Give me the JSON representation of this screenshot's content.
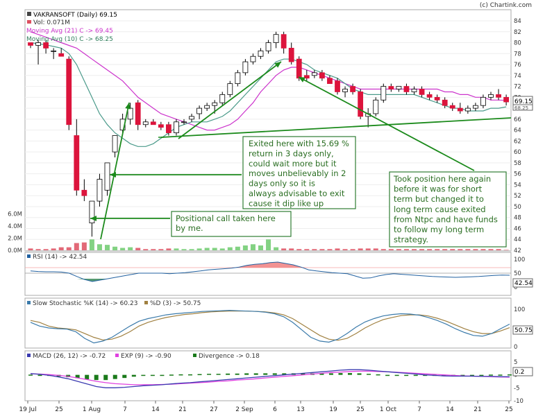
{
  "copyright": "(c) Chartink.com",
  "colors": {
    "up": "#ffffff",
    "down": "#dc143c",
    "wick": "#000000",
    "ma21": "#cc33cc",
    "ma10": "#4a9a8a",
    "volume": "#dd4f5f",
    "volume_up": "#6dca6d",
    "annotation_border": "#2e7d32",
    "annotation_text": "#2a6e22",
    "annotation_bg": "#ffffff",
    "arrow": "#1b8a1b",
    "rsi_line": "#2060a0",
    "rsi_fill": "#f08080",
    "stoch_k": "#3a7aaa",
    "stoch_d": "#a08040",
    "macd": "#3a3ab0",
    "exp": "#e040e0",
    "divergence": "#1a7a1a"
  },
  "header": {
    "title": "VAKRANSOFT (Daily) 69.15",
    "volume": "Vol: 0.071M",
    "ma21": "Moving Avg (21) C -> 69.45",
    "ma10": "Moving Avg (10) C -> 68.25"
  },
  "annotations": {
    "exit": "Exited here with 15.69 % return in 3 days only, could wait more but it moves unbelievably in 2 days only so it is always advisable to exit cause it dip like up move.",
    "position": "Took position here again before it was for short term but changed it to long term cause exited from Ntpc and have funds to follow my long term strategy.",
    "positional": "Positional call taken here by me."
  },
  "price_labels": {
    "last": "69.15",
    "ma": "68.25"
  },
  "panels": {
    "rsi": {
      "label": "RSI (14) -> 42.54",
      "value_box": "42.54"
    },
    "stoch": {
      "label_k": "Slow Stochastic %K (14) -> 60.23",
      "label_d": "%D (3) -> 50.75",
      "value_box": "50.75"
    },
    "macd": {
      "label_macd": "MACD (26, 12) -> -0.72",
      "label_exp": "EXP (9) -> -0.90",
      "label_div": "Divergence -> 0.18",
      "value_box": "0.2"
    }
  },
  "chart_data": {
    "type": "candlestick",
    "symbol": "VAKRANSOFT",
    "period": "Daily",
    "price_axis": {
      "ylim": [
        42,
        84
      ],
      "ticks": [
        42,
        44,
        46,
        48,
        50,
        52,
        54,
        56,
        58,
        60,
        62,
        64,
        66,
        68,
        70,
        72,
        74,
        76,
        78,
        80,
        82,
        84
      ]
    },
    "volume_axis": {
      "ylim": [
        0,
        7
      ],
      "ticks": [
        "0.0M",
        "2.0M",
        "4.0M",
        "6.0M"
      ]
    },
    "x_ticks": [
      "19 Jul",
      "25",
      "1 Aug",
      "7",
      "14",
      "21",
      "27",
      "2 Sep",
      "6",
      "13",
      "19",
      "25",
      "1 Oct",
      "7",
      "14",
      "21",
      "25"
    ],
    "candles": [
      {
        "o": 80,
        "h": 80,
        "l": 79,
        "c": 79.5
      },
      {
        "o": 79.5,
        "h": 80.5,
        "l": 76,
        "c": 80
      },
      {
        "o": 80,
        "h": 80.5,
        "l": 78,
        "c": 79
      },
      {
        "o": 78.5,
        "h": 79,
        "l": 77,
        "c": 78.5
      },
      {
        "o": 78,
        "h": 79,
        "l": 77.5,
        "c": 77.5
      },
      {
        "o": 77,
        "h": 77.5,
        "l": 64,
        "c": 65
      },
      {
        "o": 63,
        "h": 66,
        "l": 52,
        "c": 53
      },
      {
        "o": 53,
        "h": 55,
        "l": 51,
        "c": 52
      },
      {
        "o": 47,
        "h": 51,
        "l": 44.5,
        "c": 51
      },
      {
        "o": 51,
        "h": 56,
        "l": 50,
        "c": 55
      },
      {
        "o": 53,
        "h": 58,
        "l": 52,
        "c": 58
      },
      {
        "o": 60,
        "h": 63,
        "l": 59,
        "c": 63
      },
      {
        "o": 64,
        "h": 67,
        "l": 63,
        "c": 66
      },
      {
        "o": 66,
        "h": 69,
        "l": 65,
        "c": 68
      },
      {
        "o": 69,
        "h": 69.5,
        "l": 64,
        "c": 65
      },
      {
        "o": 65,
        "h": 66,
        "l": 64.5,
        "c": 65.5
      },
      {
        "o": 65.5,
        "h": 66,
        "l": 65,
        "c": 65
      },
      {
        "o": 65,
        "h": 65.5,
        "l": 64,
        "c": 64.5
      },
      {
        "o": 65,
        "h": 65.5,
        "l": 63,
        "c": 63.5
      },
      {
        "o": 63.5,
        "h": 66,
        "l": 63,
        "c": 65.5
      },
      {
        "o": 65.5,
        "h": 66,
        "l": 65,
        "c": 65.5
      },
      {
        "o": 66,
        "h": 67,
        "l": 65.5,
        "c": 66.5
      },
      {
        "o": 67,
        "h": 68.5,
        "l": 66,
        "c": 68
      },
      {
        "o": 68,
        "h": 69,
        "l": 67.5,
        "c": 68.5
      },
      {
        "o": 68.5,
        "h": 69.5,
        "l": 67,
        "c": 69
      },
      {
        "o": 69,
        "h": 71,
        "l": 68.5,
        "c": 70.5
      },
      {
        "o": 70.5,
        "h": 73,
        "l": 70,
        "c": 72.5
      },
      {
        "o": 72.5,
        "h": 75,
        "l": 72,
        "c": 74.5
      },
      {
        "o": 74.5,
        "h": 77,
        "l": 74,
        "c": 76.5
      },
      {
        "o": 76.5,
        "h": 78,
        "l": 76,
        "c": 77.5
      },
      {
        "o": 77.5,
        "h": 79,
        "l": 77,
        "c": 78.5
      },
      {
        "o": 78.5,
        "h": 80.5,
        "l": 78,
        "c": 80
      },
      {
        "o": 80,
        "h": 82,
        "l": 79,
        "c": 81.5
      },
      {
        "o": 81.5,
        "h": 82,
        "l": 78,
        "c": 79
      },
      {
        "o": 79,
        "h": 80,
        "l": 76,
        "c": 76.5
      },
      {
        "o": 77,
        "h": 77.5,
        "l": 73,
        "c": 73.5
      },
      {
        "o": 74,
        "h": 75,
        "l": 73,
        "c": 73.5
      },
      {
        "o": 74,
        "h": 75,
        "l": 73.5,
        "c": 74.5
      },
      {
        "o": 74.5,
        "h": 75,
        "l": 73,
        "c": 73.5
      },
      {
        "o": 73.5,
        "h": 74,
        "l": 72.5,
        "c": 72.5
      },
      {
        "o": 73,
        "h": 73.5,
        "l": 70.5,
        "c": 71
      },
      {
        "o": 71,
        "h": 72,
        "l": 70,
        "c": 71.5
      },
      {
        "o": 72,
        "h": 72.5,
        "l": 70.5,
        "c": 71
      },
      {
        "o": 71,
        "h": 71.5,
        "l": 66,
        "c": 66.5
      },
      {
        "o": 66.5,
        "h": 68,
        "l": 64.5,
        "c": 67
      },
      {
        "o": 67,
        "h": 70,
        "l": 66.5,
        "c": 69.5
      },
      {
        "o": 69.5,
        "h": 72.5,
        "l": 69,
        "c": 72
      },
      {
        "o": 72,
        "h": 72.5,
        "l": 71,
        "c": 71.5
      },
      {
        "o": 71.5,
        "h": 72,
        "l": 71,
        "c": 72
      },
      {
        "o": 72,
        "h": 72.5,
        "l": 70.5,
        "c": 71
      },
      {
        "o": 71,
        "h": 72,
        "l": 70.5,
        "c": 71.5
      },
      {
        "o": 71.5,
        "h": 72,
        "l": 70,
        "c": 70.5
      },
      {
        "o": 70.5,
        "h": 71,
        "l": 69.5,
        "c": 70
      },
      {
        "o": 70,
        "h": 70.5,
        "l": 69,
        "c": 69.5
      },
      {
        "o": 69.5,
        "h": 70,
        "l": 68,
        "c": 68.5
      },
      {
        "o": 68.5,
        "h": 69,
        "l": 67.5,
        "c": 68
      },
      {
        "o": 68,
        "h": 69,
        "l": 67,
        "c": 67.5
      },
      {
        "o": 67.5,
        "h": 68.5,
        "l": 67,
        "c": 68
      },
      {
        "o": 68,
        "h": 69,
        "l": 67.5,
        "c": 68.5
      },
      {
        "o": 68.5,
        "h": 70.5,
        "l": 68,
        "c": 70
      },
      {
        "o": 70,
        "h": 71,
        "l": 69.5,
        "c": 70.5
      },
      {
        "o": 70.5,
        "h": 71.5,
        "l": 69.5,
        "c": 70
      },
      {
        "o": 70,
        "h": 70.5,
        "l": 68.5,
        "c": 69.15
      }
    ],
    "volume": [
      0.3,
      0.2,
      0.2,
      0.3,
      0.5,
      0.5,
      1.2,
      1.3,
      1.8,
      1.0,
      0.9,
      0.6,
      0.4,
      0.5,
      0.4,
      0.2,
      0.2,
      0.2,
      0.3,
      0.3,
      0.2,
      0.2,
      0.3,
      0.4,
      0.4,
      0.3,
      0.5,
      0.6,
      0.8,
      1.0,
      0.8,
      1.8,
      0.5,
      0.3,
      0.3,
      0.2,
      0.2,
      0.2,
      0.2,
      0.2,
      0.3,
      0.2,
      0.2,
      0.3,
      0.3,
      0.3,
      0.2,
      0.2,
      0.2,
      0.2,
      0.2,
      0.2,
      0.2,
      0.2,
      0.2,
      0.2,
      0.2,
      0.2,
      0.2,
      0.2,
      0.2,
      0.2,
      0.071
    ],
    "volume_up": [
      false,
      false,
      false,
      false,
      false,
      false,
      false,
      false,
      true,
      true,
      true,
      true,
      true,
      true,
      false,
      false,
      false,
      false,
      false,
      true,
      true,
      true,
      true,
      true,
      true,
      true,
      true,
      true,
      true,
      true,
      true,
      true,
      true,
      false,
      false,
      false,
      false,
      false,
      false,
      false,
      false,
      false,
      false,
      false,
      false,
      false,
      false,
      false,
      false,
      false,
      false,
      false,
      false,
      false,
      false,
      false,
      false,
      false,
      false,
      false,
      false,
      false,
      false
    ],
    "ma21": [
      82,
      81.5,
      81,
      80.5,
      80,
      79.5,
      79,
      78,
      77,
      76,
      75,
      74,
      73,
      71.5,
      70,
      69,
      68,
      67,
      66.5,
      66,
      65.5,
      65,
      64.5,
      64,
      64,
      64.5,
      65,
      66,
      67.5,
      69,
      71,
      72.5,
      74,
      75,
      75.5,
      75.5,
      75,
      74.5,
      74,
      73.5,
      73,
      72.5,
      72,
      71.5,
      71.5,
      71.5,
      71.5,
      71.5,
      71.5,
      71.5,
      71.5,
      71.5,
      71.5,
      71.5,
      71,
      71,
      70.5,
      70.5,
      70,
      70,
      69.5,
      69.5,
      69.45
    ],
    "ma10": [
      80,
      79.8,
      79.6,
      79.3,
      79,
      78,
      76,
      73,
      70,
      67,
      65,
      63.5,
      62.5,
      61.5,
      61,
      61,
      61.5,
      62.5,
      63.5,
      64.5,
      65,
      65.5,
      65.5,
      65.5,
      66,
      66.5,
      67.5,
      69,
      70.5,
      72,
      73.5,
      75,
      76.5,
      77,
      77,
      76.5,
      76,
      75,
      74.5,
      74,
      73.5,
      72.5,
      71.5,
      71,
      70.5,
      70.5,
      70.5,
      70.5,
      70.5,
      70.5,
      70.5,
      70,
      69.5,
      69,
      68.5,
      68,
      68,
      67.5,
      67.5,
      67.5,
      68,
      68,
      68.25
    ],
    "rsi": {
      "ylim": [
        0,
        100
      ],
      "ticks": [
        0,
        50,
        100
      ],
      "overbought": 70,
      "last": 42.54,
      "values": [
        58,
        56,
        55,
        55,
        54,
        50,
        38,
        27,
        20,
        25,
        30,
        35,
        40,
        45,
        50,
        50,
        50,
        50,
        48,
        50,
        52,
        55,
        58,
        62,
        64,
        66,
        68,
        72,
        78,
        82,
        84,
        88,
        90,
        85,
        80,
        72,
        62,
        58,
        55,
        52,
        50,
        48,
        40,
        32,
        33,
        40,
        45,
        48,
        46,
        44,
        42,
        40,
        38,
        37,
        36,
        35,
        36,
        37,
        38,
        40,
        42,
        43,
        42.54
      ]
    },
    "stochastic": {
      "ylim": [
        0,
        100
      ],
      "ticks": [
        0,
        50,
        100
      ],
      "k_last": 60.23,
      "d_last": 50.75,
      "k": [
        65,
        55,
        50,
        48,
        47,
        40,
        22,
        10,
        15,
        25,
        40,
        55,
        68,
        75,
        80,
        85,
        88,
        90,
        92,
        94,
        95,
        96,
        97,
        96,
        95,
        94,
        92,
        88,
        80,
        65,
        45,
        25,
        15,
        12,
        20,
        35,
        52,
        66,
        75,
        82,
        86,
        88,
        87,
        84,
        78,
        70,
        60,
        48,
        38,
        30,
        28,
        35,
        48,
        60.23
      ],
      "d": [
        70,
        65,
        55,
        50,
        48,
        45,
        35,
        25,
        18,
        20,
        28,
        40,
        55,
        65,
        72,
        78,
        82,
        86,
        88,
        91,
        93,
        94,
        95,
        95,
        95,
        94,
        93,
        90,
        85,
        75,
        60,
        45,
        30,
        20,
        17,
        22,
        35,
        50,
        62,
        72,
        78,
        83,
        85,
        85,
        82,
        76,
        68,
        58,
        48,
        40,
        35,
        35,
        42,
        50.75
      ]
    },
    "macd": {
      "ylim": [
        -10,
        5
      ],
      "ticks": [
        -10,
        -5,
        0,
        5
      ],
      "macd_last": -0.72,
      "exp_last": -0.9,
      "div_last": 0.18,
      "macd": [
        0.5,
        0.2,
        -0.2,
        -0.8,
        -1.5,
        -2.5,
        -3.5,
        -4.5,
        -5.0,
        -5.0,
        -4.8,
        -4.5,
        -4.2,
        -4.0,
        -3.8,
        -3.5,
        -3.2,
        -3.0,
        -2.7,
        -2.4,
        -2.1,
        -1.8,
        -1.5,
        -1.2,
        -0.9,
        -0.6,
        -0.3,
        0,
        0.3,
        0.6,
        0.9,
        1.2,
        1.5,
        1.8,
        2.0,
        2.0,
        1.8,
        1.5,
        1.2,
        0.9,
        0.6,
        0.3,
        0,
        -0.2,
        -0.4,
        -0.5,
        -0.5,
        -0.5,
        -0.6,
        -0.6,
        -0.7,
        -0.72
      ],
      "exp": [
        0.4,
        0.3,
        0.1,
        -0.2,
        -0.6,
        -1.2,
        -1.8,
        -2.5,
        -3.0,
        -3.4,
        -3.6,
        -3.8,
        -3.8,
        -3.8,
        -3.7,
        -3.6,
        -3.4,
        -3.2,
        -3.0,
        -2.8,
        -2.5,
        -2.3,
        -2.0,
        -1.8,
        -1.5,
        -1.2,
        -0.9,
        -0.6,
        -0.3,
        0,
        0.3,
        0.6,
        0.9,
        1.1,
        1.3,
        1.4,
        1.4,
        1.3,
        1.2,
        1.0,
        0.8,
        0.6,
        0.4,
        0.2,
        0,
        -0.2,
        -0.4,
        -0.5,
        -0.6,
        -0.7,
        -0.8,
        -0.9
      ],
      "divergence": [
        0.1,
        -0.1,
        -0.3,
        -0.6,
        -0.9,
        -1.3,
        -1.7,
        -2.0,
        -2.0,
        -1.6,
        -1.2,
        -0.7,
        -0.4,
        -0.2,
        -0.1,
        0.1,
        0.2,
        0.2,
        0.3,
        0.4,
        0.4,
        0.5,
        0.5,
        0.6,
        0.6,
        0.6,
        0.6,
        0.6,
        0.6,
        0.6,
        0.6,
        0.6,
        0.6,
        0.7,
        0.7,
        0.6,
        0.4,
        0.2,
        0,
        -0.1,
        -0.2,
        -0.3,
        -0.4,
        -0.4,
        -0.4,
        -0.3,
        -0.1,
        0,
        0,
        0.1,
        0.1,
        0.18
      ]
    }
  }
}
